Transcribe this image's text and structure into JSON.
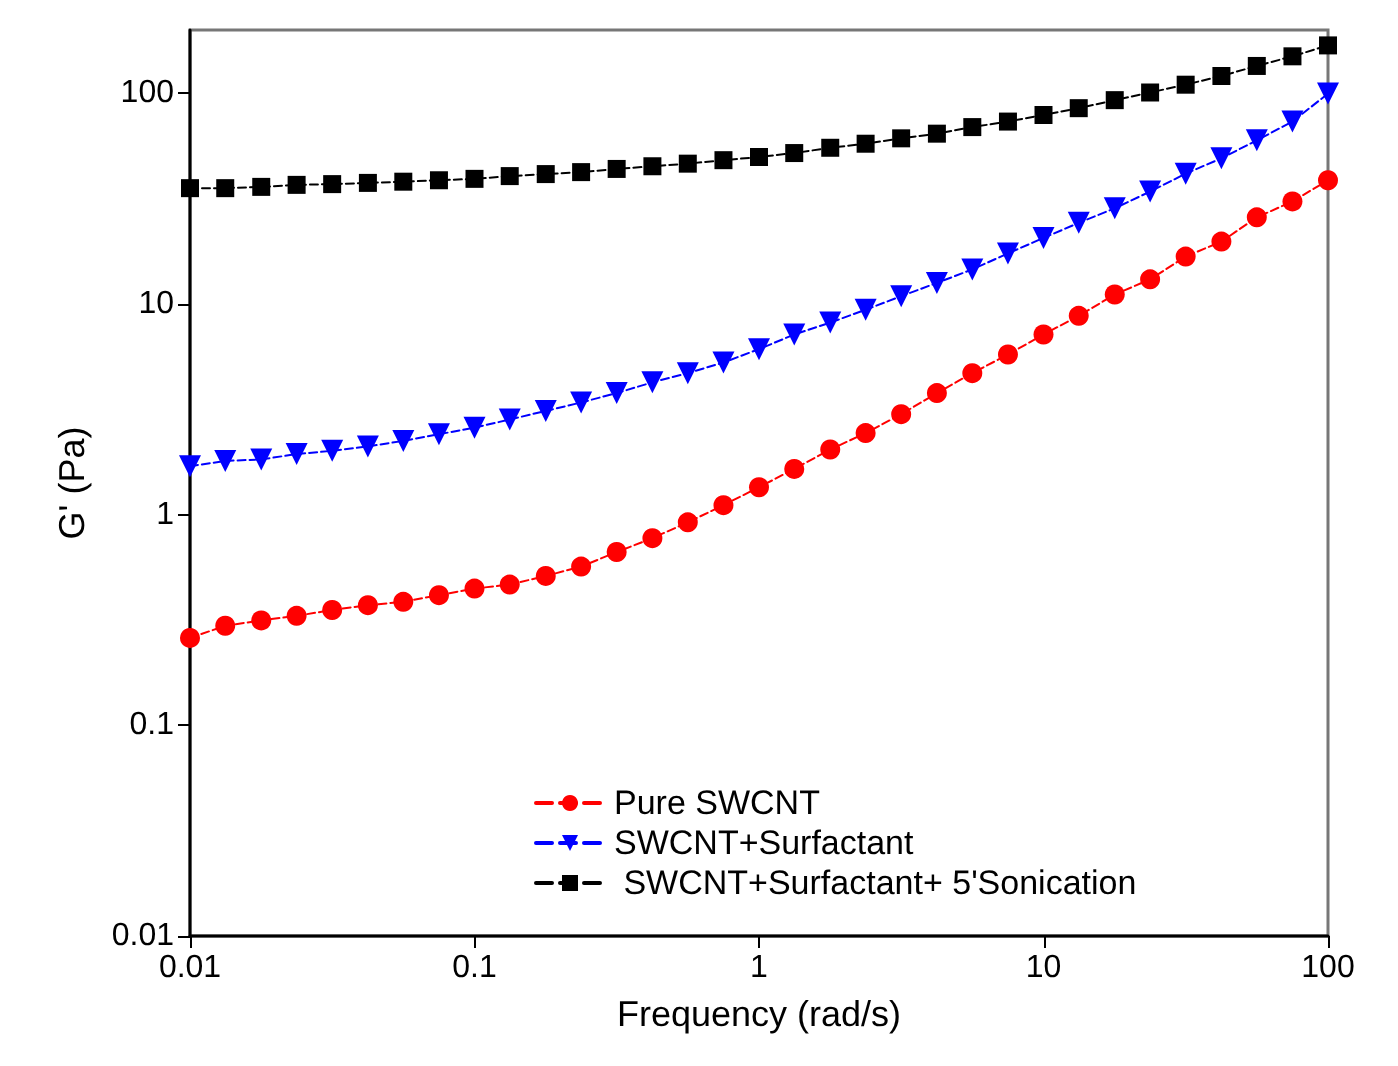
{
  "chart_data": {
    "type": "line",
    "xlabel": "Frequency (rad/s)",
    "ylabel": "G' (Pa)",
    "log": "xy",
    "x": [
      0.01,
      0.0133,
      0.0178,
      0.0237,
      0.0316,
      0.0422,
      0.0562,
      0.075,
      0.1,
      0.133,
      0.178,
      0.237,
      0.316,
      0.422,
      0.562,
      0.75,
      1,
      1.33,
      1.78,
      2.37,
      3.16,
      4.22,
      5.62,
      7.5,
      10,
      13.3,
      17.8,
      23.7,
      31.6,
      42.2,
      56.2,
      75,
      100
    ],
    "series": [
      {
        "name": "Pure SWCNT",
        "color": "#ff0000",
        "marker": "circle",
        "values": [
          0.26,
          0.297,
          0.315,
          0.331,
          0.353,
          0.372,
          0.386,
          0.415,
          0.446,
          0.466,
          0.512,
          0.567,
          0.665,
          0.774,
          0.92,
          1.11,
          1.35,
          1.65,
          2.04,
          2.44,
          3.0,
          3.78,
          4.7,
          5.76,
          7.17,
          8.79,
          11.1,
          13.1,
          16.8,
          19.8,
          25.8,
          30.7,
          38.7
        ]
      },
      {
        "name": "SWCNT+Surfactant",
        "color": "#0000ff",
        "marker": "triangle",
        "values": [
          1.7,
          1.8,
          1.83,
          1.94,
          2.01,
          2.11,
          2.24,
          2.41,
          2.59,
          2.83,
          3.11,
          3.41,
          3.78,
          4.25,
          4.7,
          5.28,
          6.11,
          7.17,
          8.17,
          9.4,
          10.9,
          12.6,
          14.6,
          17.4,
          20.6,
          24.3,
          28.5,
          34.2,
          41.6,
          49.2,
          59.9,
          73.5,
          99.8
        ]
      },
      {
        "name": " SWCNT+Surfactant+ 5'Sonication",
        "color": "#000000",
        "marker": "square",
        "values": [
          35.5,
          35.5,
          36.0,
          36.8,
          37.1,
          37.6,
          38.1,
          38.7,
          39.3,
          40.5,
          41.4,
          42.3,
          43.8,
          45.1,
          46.4,
          48.2,
          49.9,
          52.1,
          55.2,
          57.7,
          61.2,
          64.4,
          69.2,
          73.5,
          79.0,
          85.1,
          92.9,
          101,
          110,
          121,
          135,
          150,
          169
        ]
      }
    ],
    "xlim": [
      0.01,
      100
    ],
    "xticks": [
      0.01,
      0.1,
      1,
      10,
      100
    ],
    "ylim": [
      0.01,
      200
    ],
    "yticks": [
      0.01,
      0.1,
      1,
      10,
      100
    ],
    "line_style": "dashed",
    "grid": false,
    "legend": "bottom right"
  }
}
